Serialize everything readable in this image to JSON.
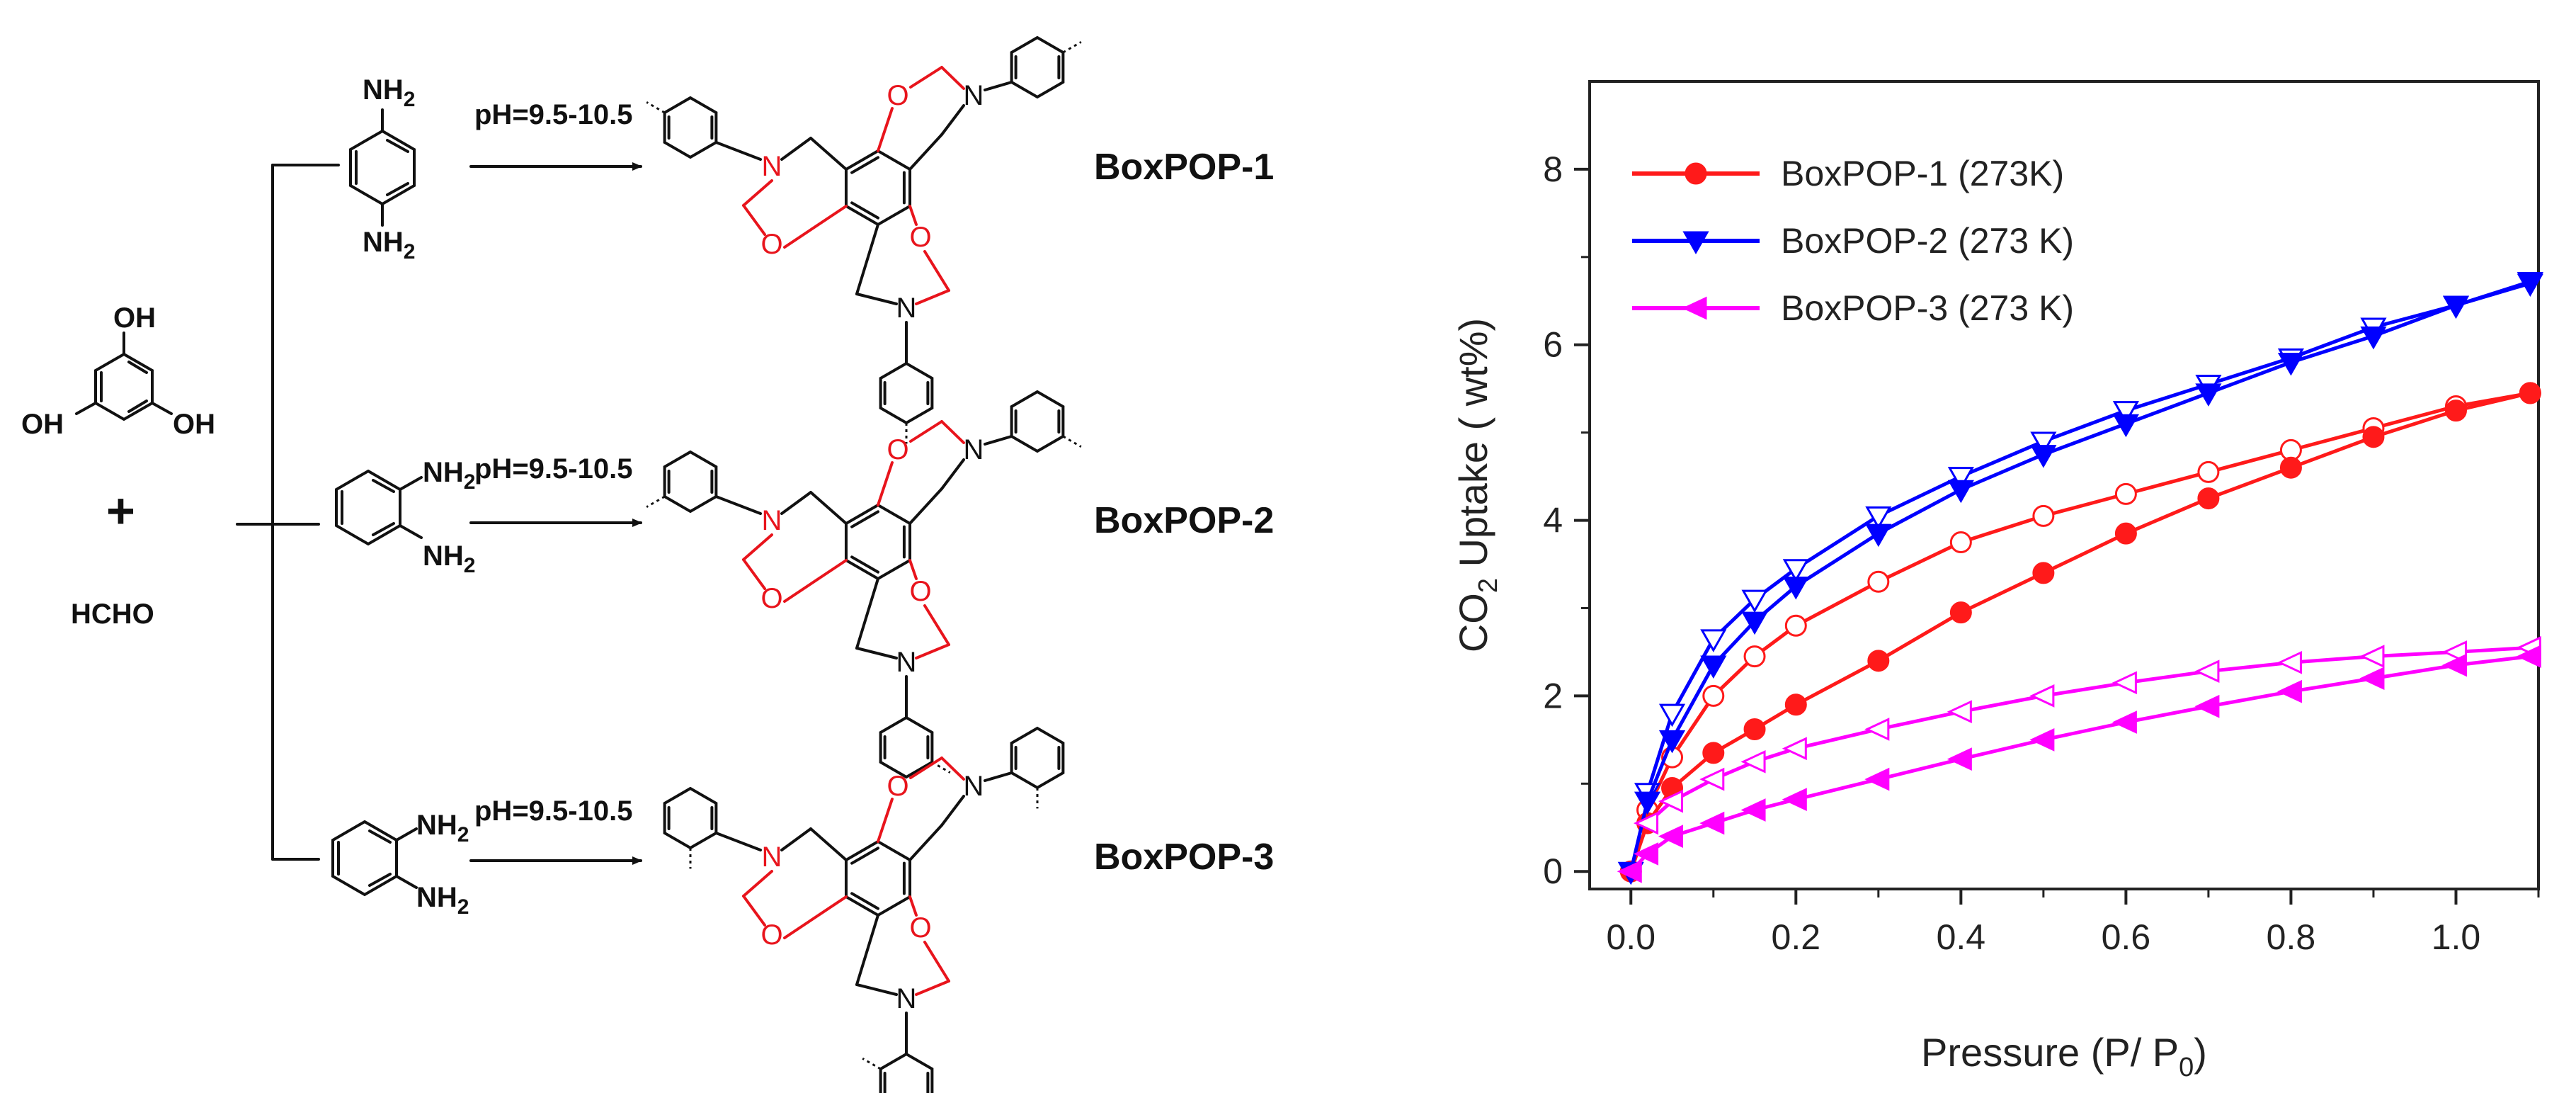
{
  "scheme": {
    "reactant_phenol_oh": "OH",
    "reactant_plus": "+",
    "reactant_aldehyde": "HCHO",
    "amine_nh2": "NH",
    "amine_nh2_sub": "2",
    "condition": "pH=9.5-10.5",
    "atom_o": "O",
    "atom_n": "N",
    "products": [
      {
        "label": "BoxPOP-1"
      },
      {
        "label": "BoxPOP-2"
      },
      {
        "label": "BoxPOP-3"
      }
    ]
  },
  "chart_data": {
    "type": "line",
    "xlabel": "Pressure (P/ P",
    "xlabel_sub": "0",
    "xlabel_end": ")",
    "ylabel_pre": "CO",
    "ylabel_sub": "2",
    "ylabel_post": " Uptake ( wt%)",
    "xlim": [
      -0.05,
      1.1
    ],
    "ylim": [
      -0.2,
      9
    ],
    "xticks": [
      "0.0",
      "0.2",
      "0.4",
      "0.6",
      "0.8",
      "1.0"
    ],
    "yticks": [
      "0",
      "2",
      "4",
      "6",
      "8"
    ],
    "legend_position": "top-left",
    "series": [
      {
        "name": "BoxPOP-1 (273K)",
        "color": "#ff1a1a",
        "marker": "circle",
        "adsorption": {
          "x": [
            0.0,
            0.02,
            0.05,
            0.1,
            0.15,
            0.2,
            0.3,
            0.4,
            0.5,
            0.6,
            0.7,
            0.8,
            0.9,
            1.0,
            1.09
          ],
          "y": [
            0.0,
            0.55,
            0.95,
            1.35,
            1.62,
            1.9,
            2.4,
            2.95,
            3.4,
            3.85,
            4.25,
            4.6,
            4.95,
            5.25,
            5.45
          ]
        },
        "desorption": {
          "x": [
            0.02,
            0.05,
            0.1,
            0.15,
            0.2,
            0.3,
            0.4,
            0.5,
            0.6,
            0.7,
            0.8,
            0.9,
            1.0,
            1.09
          ],
          "y": [
            0.7,
            1.3,
            2.0,
            2.45,
            2.8,
            3.3,
            3.75,
            4.05,
            4.3,
            4.55,
            4.8,
            5.05,
            5.3,
            5.45
          ]
        }
      },
      {
        "name": "BoxPOP-2 (273 K)",
        "color": "#0000ff",
        "marker": "triangle-down",
        "adsorption": {
          "x": [
            0.0,
            0.02,
            0.05,
            0.1,
            0.15,
            0.2,
            0.3,
            0.4,
            0.5,
            0.6,
            0.7,
            0.8,
            0.9,
            1.0,
            1.09
          ],
          "y": [
            0.0,
            0.8,
            1.5,
            2.35,
            2.85,
            3.25,
            3.85,
            4.35,
            4.75,
            5.1,
            5.45,
            5.8,
            6.1,
            6.45,
            6.7
          ]
        },
        "desorption": {
          "x": [
            0.02,
            0.05,
            0.1,
            0.15,
            0.2,
            0.3,
            0.4,
            0.5,
            0.6,
            0.7,
            0.8,
            0.9,
            1.0,
            1.09
          ],
          "y": [
            0.9,
            1.8,
            2.65,
            3.1,
            3.45,
            4.05,
            4.5,
            4.9,
            5.25,
            5.55,
            5.85,
            6.2,
            6.45,
            6.72
          ]
        }
      },
      {
        "name": "BoxPOP-3 (273 K)",
        "color": "#ff00ff",
        "marker": "triangle-left",
        "adsorption": {
          "x": [
            0.0,
            0.02,
            0.05,
            0.1,
            0.15,
            0.2,
            0.3,
            0.4,
            0.5,
            0.6,
            0.7,
            0.8,
            0.9,
            1.0,
            1.09
          ],
          "y": [
            0.0,
            0.2,
            0.4,
            0.55,
            0.7,
            0.82,
            1.05,
            1.28,
            1.5,
            1.7,
            1.88,
            2.05,
            2.2,
            2.35,
            2.45
          ]
        },
        "desorption": {
          "x": [
            0.02,
            0.05,
            0.1,
            0.15,
            0.2,
            0.3,
            0.4,
            0.5,
            0.6,
            0.7,
            0.8,
            0.9,
            1.0,
            1.09
          ],
          "y": [
            0.55,
            0.8,
            1.05,
            1.25,
            1.4,
            1.62,
            1.82,
            2.0,
            2.15,
            2.28,
            2.38,
            2.45,
            2.5,
            2.55
          ]
        }
      }
    ]
  }
}
